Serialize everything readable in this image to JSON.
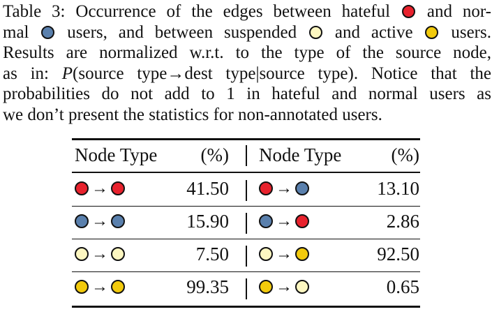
{
  "caption": {
    "lines": [
      {
        "segments": [
          {
            "t": "Table 3: Occurrence of the edges between hateful "
          },
          {
            "dot": "hateful"
          },
          {
            "t": " and nor-"
          }
        ]
      },
      {
        "segments": [
          {
            "t": "mal "
          },
          {
            "dot": "normal"
          },
          {
            "t": " users, and between suspended "
          },
          {
            "dot": "suspended"
          },
          {
            "t": " and active "
          },
          {
            "dot": "active"
          },
          {
            "t": " users."
          }
        ]
      },
      {
        "segments": [
          {
            "t": "Results are normalized w.r.t. to the type of the source node,"
          }
        ]
      },
      {
        "segments": [
          {
            "t": "as in: "
          },
          {
            "it": "P"
          },
          {
            "t": "(source type→dest type|source type). Notice that the"
          }
        ]
      },
      {
        "segments": [
          {
            "t": "probabilities do not add to 1 in hateful and normal users as"
          }
        ]
      },
      {
        "segments": [
          {
            "t": "we don’t present the statistics for non-annotated users."
          }
        ]
      }
    ]
  },
  "colors": {
    "hateful": "#e8222d",
    "normal": "#5a80ad",
    "suspended": "#fdf7c1",
    "active": "#f2ca0c"
  },
  "table": {
    "headers": [
      "Node Type",
      "(%)",
      "Node Type",
      "(%)"
    ],
    "rows": [
      {
        "left": {
          "src": "hateful",
          "dst": "hateful",
          "val": "41.50"
        },
        "right": {
          "src": "hateful",
          "dst": "normal",
          "val": "13.10"
        }
      },
      {
        "left": {
          "src": "normal",
          "dst": "normal",
          "val": "15.90"
        },
        "right": {
          "src": "normal",
          "dst": "hateful",
          "val": "2.86"
        }
      },
      {
        "left": {
          "src": "suspended",
          "dst": "suspended",
          "val": "7.50"
        },
        "right": {
          "src": "suspended",
          "dst": "active",
          "val": "92.50"
        }
      },
      {
        "left": {
          "src": "active",
          "dst": "active",
          "val": "99.35"
        },
        "right": {
          "src": "active",
          "dst": "suspended",
          "val": "0.65"
        }
      }
    ]
  }
}
